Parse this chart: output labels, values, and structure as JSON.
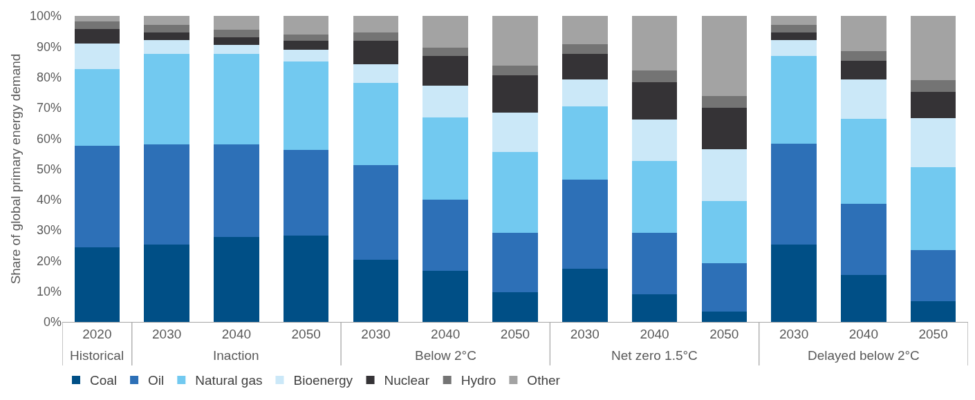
{
  "chart_data": {
    "type": "bar",
    "stacked": true,
    "ylabel": "Share of global primary energy demand",
    "categories": [
      "2020",
      "2030",
      "2040",
      "2050",
      "2030",
      "2040",
      "2050",
      "2030",
      "2040",
      "2050",
      "2030",
      "2040",
      "2050"
    ],
    "series": [
      {
        "name": "Coal",
        "color": "#004f86",
        "values": [
          24.3,
          25.2,
          27.7,
          28.3,
          20.3,
          16.8,
          9.8,
          17.4,
          9,
          3.5,
          25.3,
          15.3,
          6.8
        ]
      },
      {
        "name": "Oil",
        "color": "#2d70b7",
        "values": [
          33.2,
          32.9,
          30.4,
          27.9,
          31,
          23.1,
          19.4,
          29.1,
          20.2,
          15.8,
          32.9,
          23.3,
          16.7
        ]
      },
      {
        "name": "Natural gas",
        "color": "#72c9f0",
        "values": [
          25.1,
          29.4,
          29.4,
          28.8,
          26.7,
          27,
          26.3,
          24,
          23.3,
          20.2,
          28.8,
          27.8,
          27
        ]
      },
      {
        "name": "Bioenergy",
        "color": "#cbe8f8",
        "values": [
          8.4,
          4.5,
          3,
          4,
          6.3,
          10.4,
          13,
          8.7,
          13.7,
          16.9,
          5,
          12.9,
          16.1
        ]
      },
      {
        "name": "Nuclear",
        "color": "#353336",
        "values": [
          4.8,
          2.5,
          2.5,
          2.8,
          7.5,
          9.7,
          12,
          8.3,
          12.2,
          13.6,
          2.5,
          6,
          8.6
        ]
      },
      {
        "name": "Hydro",
        "color": "#747474",
        "values": [
          2.4,
          2.5,
          2.5,
          2.2,
          2.7,
          2.6,
          3.2,
          3.3,
          3.8,
          3.8,
          2.5,
          3.1,
          3.7
        ]
      },
      {
        "name": "Other",
        "color": "#a3a3a3",
        "values": [
          1.8,
          3,
          4.5,
          6,
          5.5,
          10.4,
          16.3,
          9.2,
          17.8,
          26.2,
          3,
          11.6,
          21.1
        ]
      }
    ],
    "ylim": [
      0,
      100
    ],
    "yticks": [
      {
        "value": 0,
        "label": "0%"
      },
      {
        "value": 10,
        "label": "10%"
      },
      {
        "value": 20,
        "label": "20%"
      },
      {
        "value": 30,
        "label": "30%"
      },
      {
        "value": 40,
        "label": "40%"
      },
      {
        "value": 50,
        "label": "50%"
      },
      {
        "value": 60,
        "label": "60%"
      },
      {
        "value": 70,
        "label": "70%"
      },
      {
        "value": 80,
        "label": "80%"
      },
      {
        "value": 90,
        "label": "90%"
      },
      {
        "value": 100,
        "label": "100%"
      }
    ],
    "annotations": [
      "Historical",
      "Inaction",
      "Below 2°C",
      "Net zero 1.5°C",
      "Delayed below 2°C"
    ],
    "legend": "bottom left"
  }
}
